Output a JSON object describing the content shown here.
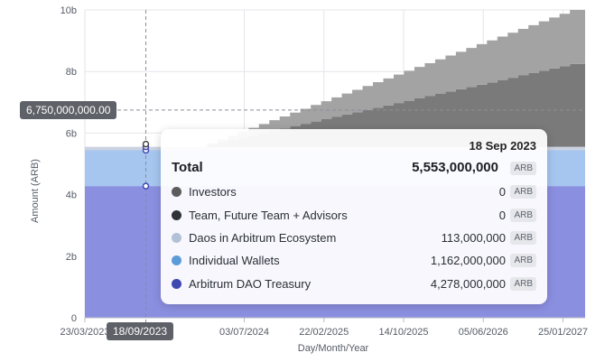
{
  "chart_data": {
    "type": "area",
    "stacked": true,
    "ylabel": "Amount (ARB)",
    "xlabel": "Day/Month/Year",
    "y_ticks": [
      "0",
      "2b",
      "4b",
      "6b",
      "8b",
      "10b"
    ],
    "ylim": [
      0,
      10000000000
    ],
    "x_ticks": [
      "23/03/2023",
      "03/07/2024",
      "22/02/2025",
      "14/10/2025",
      "05/06/2026",
      "25/01/2027"
    ],
    "x_tick_dates": [
      "2023-03-23",
      "2024-07-03",
      "2025-02-22",
      "2025-10-14",
      "2026-06-05",
      "2027-01-25"
    ],
    "xlim": [
      "2023-03-23",
      "2027-03-31"
    ],
    "grid": true,
    "unlock_start": "2024-03-16",
    "series": [
      {
        "name": "Arbitrum DAO Treasury",
        "color": "#8b8fe0",
        "type": "flat",
        "value": 4278000000
      },
      {
        "name": "Individual Wallets",
        "color": "#a6c6f0",
        "type": "flat",
        "value": 1162000000
      },
      {
        "name": "Daos in Arbitrum Ecosystem",
        "color": "#cbd2e0",
        "type": "flat",
        "value": 113000000
      },
      {
        "name": "Team, Future Team + Advisors",
        "color": "#7a7a7a",
        "type": "step",
        "start": "2024-03-16",
        "end": "2027-03-16",
        "total": 2694000000
      },
      {
        "name": "Investors",
        "color": "#a3a3a3",
        "type": "step",
        "start": "2024-03-16",
        "end": "2027-03-16",
        "total": 1753000000
      }
    ],
    "crosshair": {
      "date_label": "18/09/2023",
      "value_label": "6,750,000,000.00",
      "value": 6750000000,
      "date": "2023-09-18"
    }
  },
  "tooltip": {
    "date": "18 Sep 2023",
    "total_label": "Total",
    "total_value": "5,553,000,000",
    "unit": "ARB",
    "rows": [
      {
        "label": "Investors",
        "value": "0",
        "color": "#5c5c5c"
      },
      {
        "label": "Team, Future Team + Advisors",
        "value": "0",
        "color": "#2f3338"
      },
      {
        "label": "Daos in Arbitrum Ecosystem",
        "value": "113,000,000",
        "color": "#b3c1d6"
      },
      {
        "label": "Individual Wallets",
        "value": "1,162,000,000",
        "color": "#5b9bd8"
      },
      {
        "label": "Arbitrum DAO Treasury",
        "value": "4,278,000,000",
        "color": "#3f48b0"
      }
    ]
  }
}
